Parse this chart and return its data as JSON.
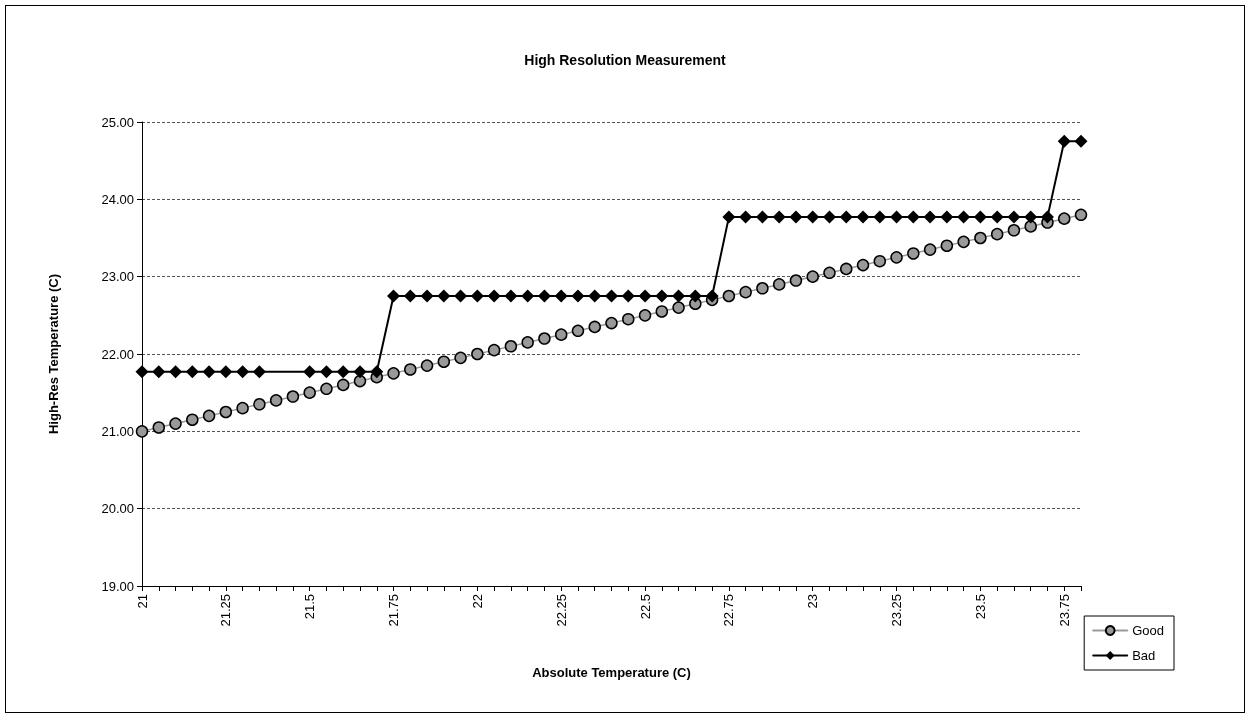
{
  "chart_data": {
    "type": "line",
    "title": "High Resolution Measurement",
    "xlabel": "Absolute Temperature (C)",
    "ylabel": "High-Res Temperature (C)",
    "categories": [
      "21",
      null,
      null,
      null,
      null,
      "21.25",
      null,
      null,
      null,
      null,
      "21.5",
      null,
      null,
      null,
      null,
      "21.75",
      null,
      null,
      null,
      null,
      "22",
      null,
      null,
      null,
      null,
      "22.25",
      null,
      null,
      null,
      null,
      "22.5",
      null,
      null,
      null,
      null,
      "22.75",
      null,
      null,
      null,
      null,
      "23",
      null,
      null,
      null,
      null,
      "23.25",
      null,
      null,
      null,
      null,
      "23.5",
      null,
      null,
      null,
      null,
      "23.75",
      null
    ],
    "series": [
      {
        "name": "Good",
        "color": "#999999",
        "marker": "circle",
        "values": [
          21.0,
          21.05,
          21.1,
          21.15,
          21.2,
          21.25,
          21.3,
          21.35,
          21.4,
          21.45,
          21.5,
          21.55,
          21.6,
          21.65,
          21.7,
          21.75,
          21.8,
          21.85,
          21.9,
          21.95,
          22.0,
          22.05,
          22.1,
          22.15,
          22.2,
          22.25,
          22.3,
          22.35,
          22.4,
          22.45,
          22.5,
          22.55,
          22.6,
          22.65,
          22.7,
          22.75,
          22.8,
          22.85,
          22.9,
          22.95,
          23.0,
          23.05,
          23.1,
          23.15,
          23.2,
          23.25,
          23.3,
          23.35,
          23.4,
          23.45,
          23.5,
          23.55,
          23.6,
          23.65,
          23.7,
          23.75,
          23.8
        ]
      },
      {
        "name": "Bad",
        "color": "#000000",
        "marker": "diamond",
        "values": [
          21.77,
          21.77,
          21.77,
          21.77,
          21.77,
          21.77,
          21.77,
          21.77,
          null,
          null,
          21.77,
          21.77,
          21.77,
          21.77,
          21.77,
          22.75,
          22.75,
          22.75,
          22.75,
          22.75,
          22.75,
          22.75,
          22.75,
          22.75,
          22.75,
          22.75,
          22.75,
          22.75,
          22.75,
          22.75,
          22.75,
          22.75,
          22.75,
          22.75,
          22.75,
          23.77,
          23.77,
          23.77,
          23.77,
          23.77,
          23.77,
          23.77,
          23.77,
          23.77,
          23.77,
          23.77,
          23.77,
          23.77,
          23.77,
          23.77,
          23.77,
          23.77,
          23.77,
          23.77,
          23.77,
          24.75,
          24.75
        ]
      }
    ],
    "ylim": [
      19,
      25
    ],
    "yticks": [
      {
        "value": 19,
        "label": "19.00"
      },
      {
        "value": 20,
        "label": "20.00"
      },
      {
        "value": 21,
        "label": "21.00"
      },
      {
        "value": 22,
        "label": "22.00"
      },
      {
        "value": 23,
        "label": "23.00"
      },
      {
        "value": 24,
        "label": "24.00"
      },
      {
        "value": 25,
        "label": "25.00"
      }
    ],
    "grid": "y",
    "legend": "right"
  }
}
